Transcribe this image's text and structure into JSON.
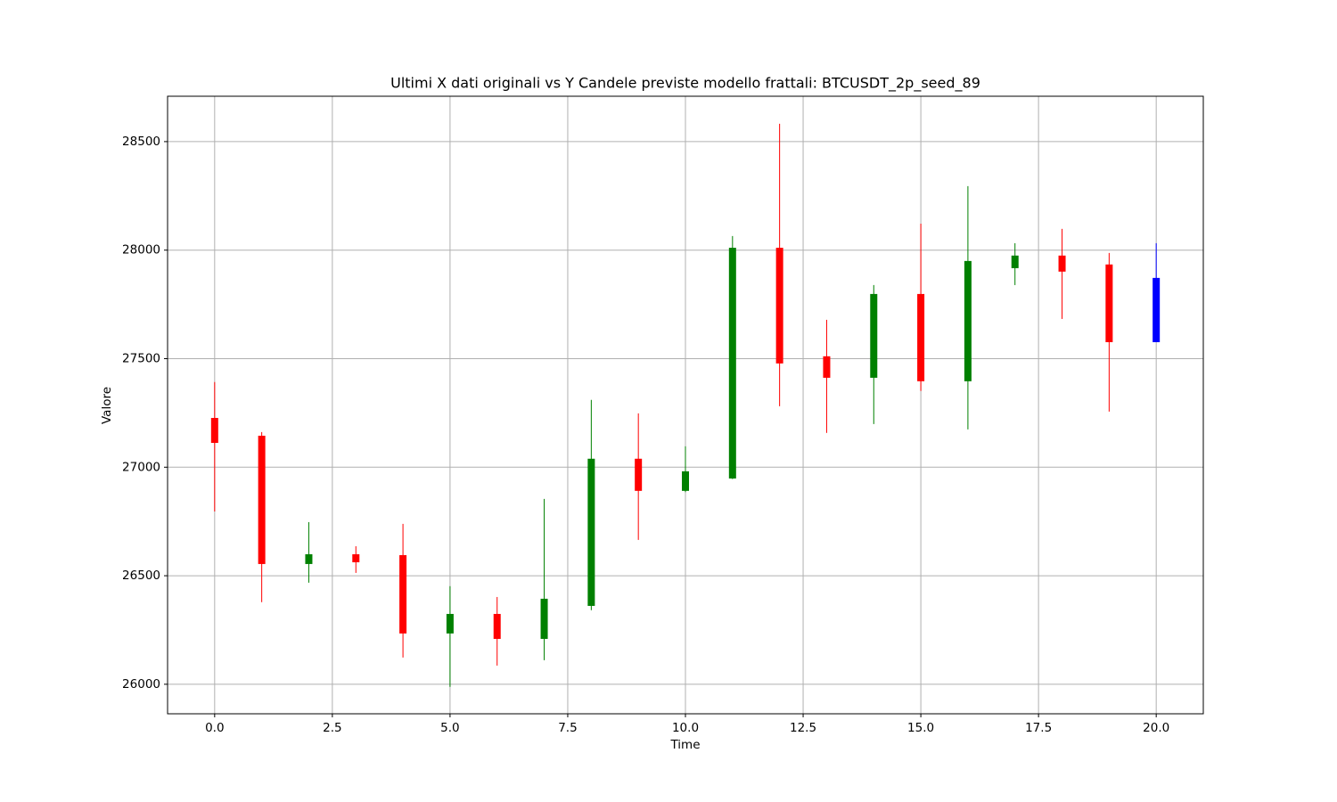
{
  "chart_data": {
    "type": "candlestick",
    "title": "Ultimi X dati originali vs Y Candele previste modello frattali: BTCUSDT_2p_seed_89",
    "x_label": "Time",
    "y_label": "Valore",
    "x": [
      0,
      1,
      2,
      3,
      4,
      5,
      6,
      7,
      8,
      9,
      10,
      11,
      12,
      13,
      14,
      15,
      16,
      17,
      18,
      19,
      20
    ],
    "open": [
      27227,
      27145,
      26554,
      26599,
      26595,
      26234,
      26324,
      26209,
      26361,
      27039,
      26891,
      26948,
      28011,
      27511,
      27412,
      27798,
      27396,
      27917,
      27975,
      27934,
      27576
    ],
    "high": [
      27392,
      27162,
      26747,
      26636,
      26739,
      26452,
      26402,
      26854,
      27310,
      27248,
      27096,
      28065,
      28582,
      27679,
      27839,
      28122,
      28295,
      28032,
      28098,
      27987,
      28032
    ],
    "low": [
      26796,
      26378,
      26468,
      26513,
      26123,
      25988,
      26086,
      26111,
      26341,
      26665,
      26885,
      26945,
      27281,
      27158,
      27199,
      27351,
      27174,
      27839,
      27683,
      27256,
      27576
    ],
    "close": [
      27112,
      26554,
      26599,
      26562,
      26234,
      26324,
      26209,
      26394,
      27039,
      26891,
      26981,
      28011,
      27478,
      27412,
      27798,
      27396,
      27950,
      27975,
      27901,
      27576,
      27872
    ],
    "colors": [
      "red",
      "red",
      "green",
      "red",
      "red",
      "green",
      "red",
      "green",
      "green",
      "red",
      "green",
      "green",
      "red",
      "red",
      "green",
      "red",
      "green",
      "green",
      "red",
      "red",
      "blue"
    ],
    "xlim": [
      -1,
      21
    ],
    "ylim": [
      25864,
      28709
    ],
    "xticks": [
      {
        "value": 0,
        "label": "0.0"
      },
      {
        "value": 2.5,
        "label": "2.5"
      },
      {
        "value": 5,
        "label": "5.0"
      },
      {
        "value": 7.5,
        "label": "7.5"
      },
      {
        "value": 10,
        "label": "10.0"
      },
      {
        "value": 12.5,
        "label": "12.5"
      },
      {
        "value": 15,
        "label": "15.0"
      },
      {
        "value": 17.5,
        "label": "17.5"
      },
      {
        "value": 20,
        "label": "20.0"
      }
    ],
    "yticks": [
      26000,
      26500,
      27000,
      27500,
      28000,
      28500
    ],
    "grid": true
  }
}
